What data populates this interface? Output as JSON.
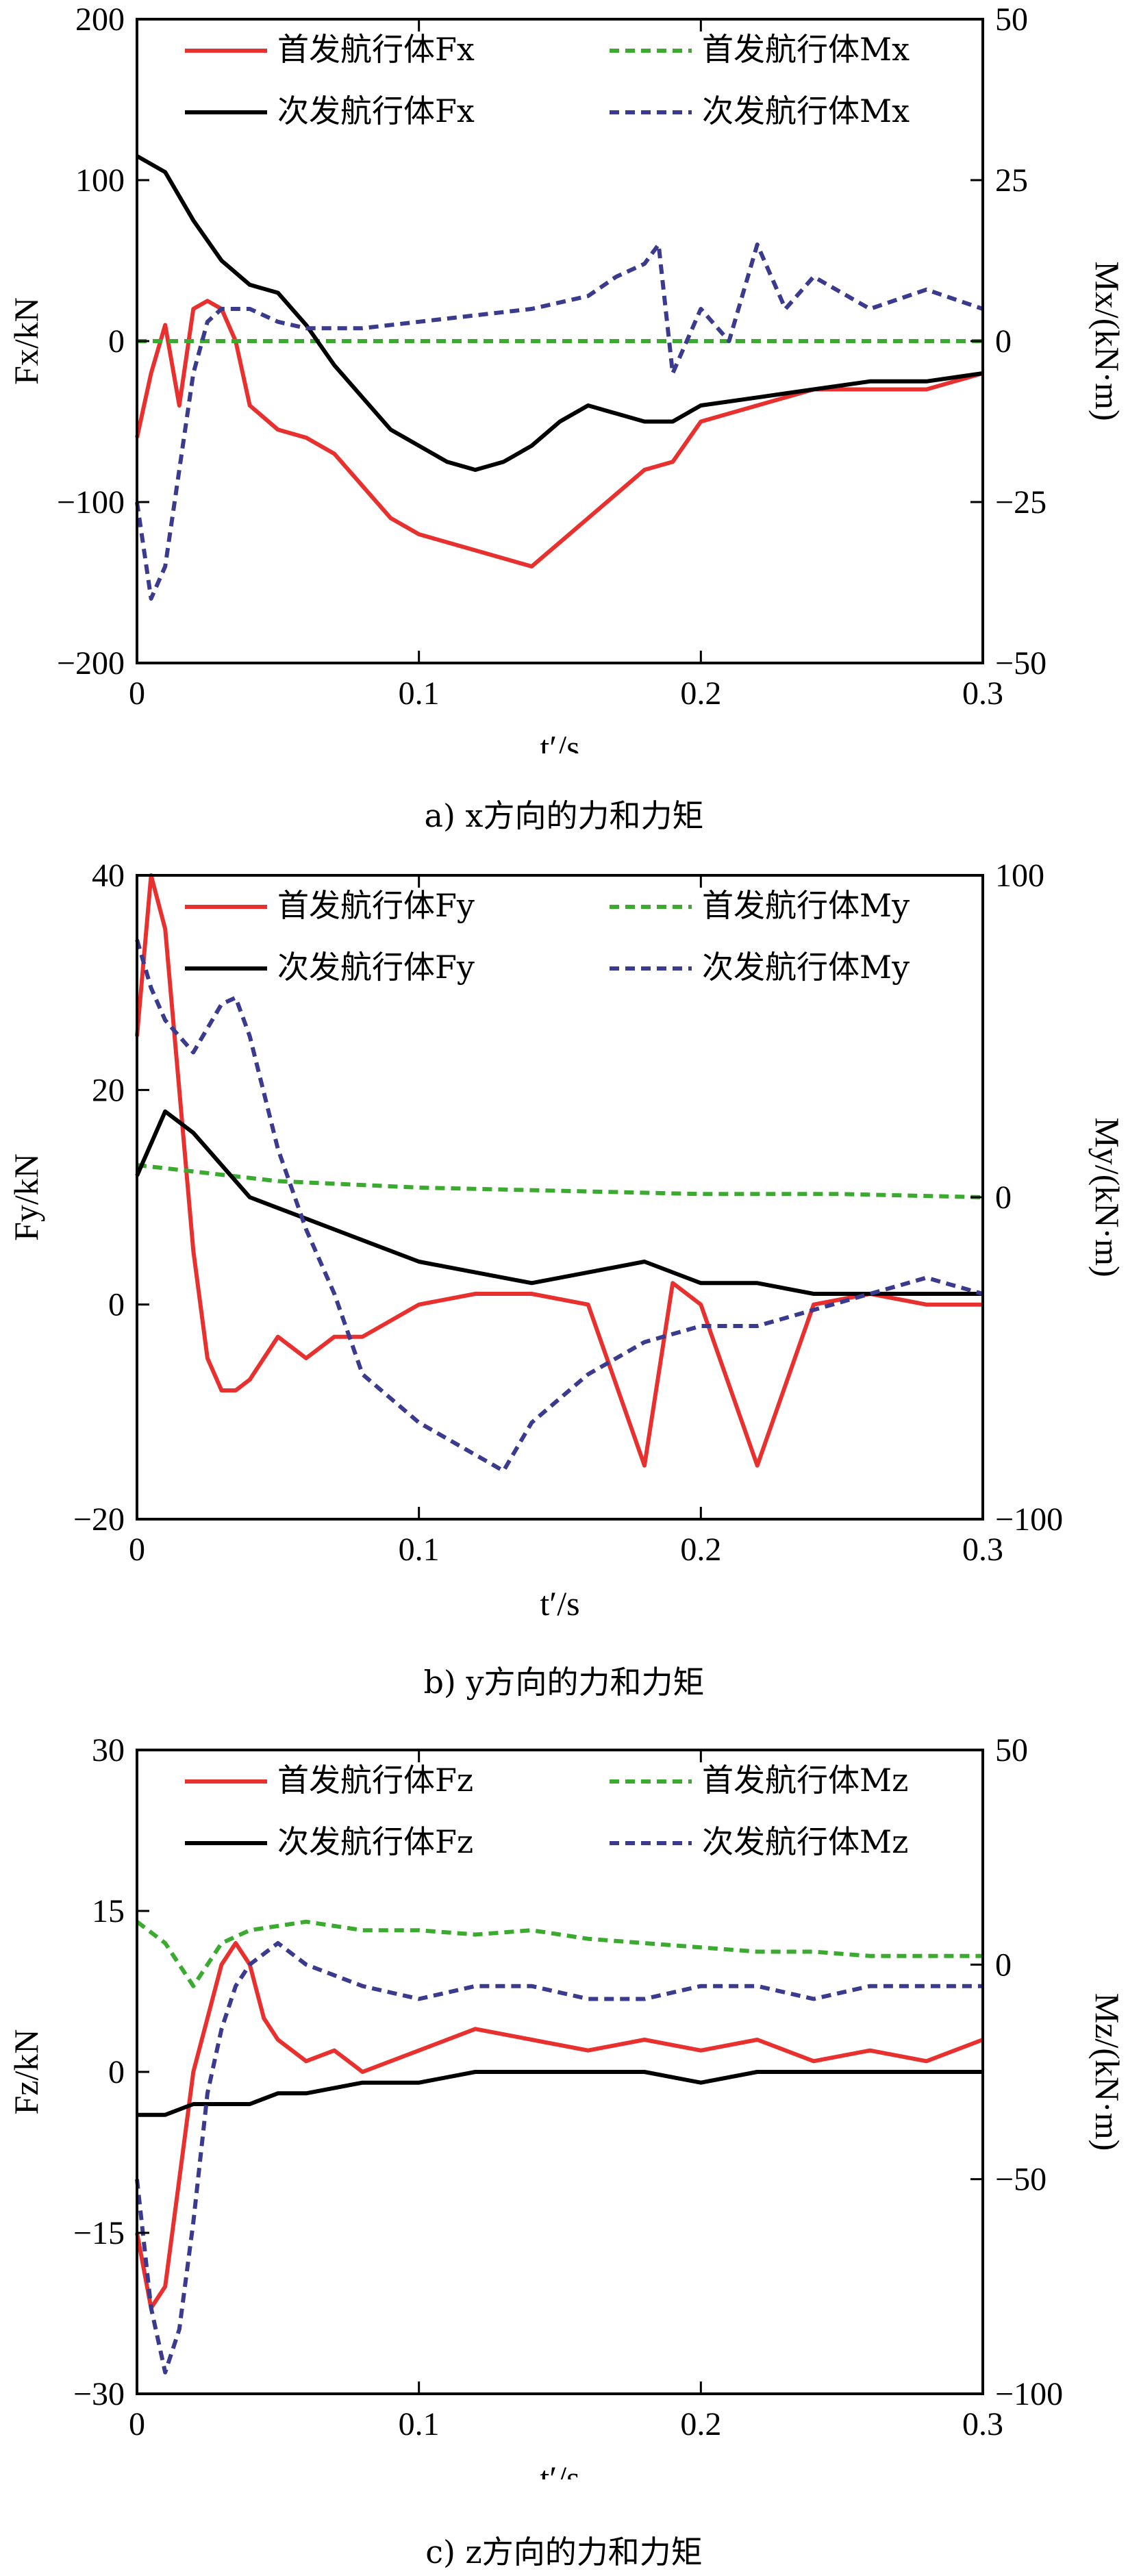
{
  "chart_data": [
    {
      "type": "line",
      "caption": "a) x方向的力和力矩",
      "xlabel": "t′/s",
      "ylabel": "Fx/kN",
      "y2label": "Mx/(kN·m)",
      "xlim": [
        0,
        0.3
      ],
      "ylim": [
        -200,
        200
      ],
      "y2lim": [
        -50,
        50
      ],
      "xticks": [
        "0",
        "0.1",
        "0.2",
        "0.3"
      ],
      "yticks": [
        "-200",
        "-100",
        "0",
        "100",
        "200"
      ],
      "y2ticks": [
        "-50",
        "-25",
        "0",
        "25",
        "50"
      ],
      "legend": [
        "首发航行体Fx",
        "首发航行体Mx",
        "次发航行体Fx",
        "次发航行体Mx"
      ],
      "series": [
        {
          "name": "首发航行体Fx",
          "axis": "left",
          "color": "#e8312f",
          "dash": "solid",
          "x": [
            0,
            0.005,
            0.01,
            0.015,
            0.02,
            0.025,
            0.03,
            0.035,
            0.04,
            0.05,
            0.06,
            0.07,
            0.08,
            0.09,
            0.1,
            0.11,
            0.12,
            0.13,
            0.14,
            0.15,
            0.16,
            0.17,
            0.18,
            0.19,
            0.2,
            0.22,
            0.24,
            0.26,
            0.28,
            0.3
          ],
          "y": [
            -60,
            -20,
            10,
            -40,
            20,
            25,
            20,
            0,
            -40,
            -55,
            -60,
            -70,
            -90,
            -110,
            -120,
            -125,
            -130,
            -135,
            -140,
            -125,
            -110,
            -95,
            -80,
            -75,
            -50,
            -40,
            -30,
            -30,
            -30,
            -20
          ]
        },
        {
          "name": "首发航行体Mx",
          "axis": "right",
          "color": "#3aab2e",
          "dash": "dash",
          "x": [
            0,
            0.05,
            0.1,
            0.15,
            0.2,
            0.25,
            0.3
          ],
          "y": [
            0,
            0,
            0,
            0,
            0,
            0,
            0
          ]
        },
        {
          "name": "次发航行体Fx",
          "axis": "left",
          "color": "#000000",
          "dash": "solid",
          "x": [
            0,
            0.01,
            0.02,
            0.03,
            0.04,
            0.05,
            0.06,
            0.07,
            0.08,
            0.09,
            0.1,
            0.11,
            0.12,
            0.13,
            0.14,
            0.15,
            0.16,
            0.17,
            0.18,
            0.19,
            0.2,
            0.22,
            0.24,
            0.26,
            0.28,
            0.3
          ],
          "y": [
            115,
            105,
            75,
            50,
            35,
            30,
            10,
            -15,
            -35,
            -55,
            -65,
            -75,
            -80,
            -75,
            -65,
            -50,
            -40,
            -45,
            -50,
            -50,
            -40,
            -35,
            -30,
            -25,
            -25,
            -20
          ]
        },
        {
          "name": "次发航行体Mx",
          "axis": "right",
          "color": "#3a3a8f",
          "dash": "dash",
          "x": [
            0,
            0.005,
            0.01,
            0.015,
            0.02,
            0.025,
            0.03,
            0.04,
            0.05,
            0.06,
            0.08,
            0.1,
            0.12,
            0.14,
            0.16,
            0.17,
            0.18,
            0.185,
            0.19,
            0.2,
            0.21,
            0.22,
            0.23,
            0.24,
            0.26,
            0.28,
            0.3
          ],
          "y": [
            -25,
            -40,
            -35,
            -20,
            -5,
            3,
            5,
            5,
            3,
            2,
            2,
            3,
            4,
            5,
            7,
            10,
            12,
            15,
            -5,
            5,
            0,
            15,
            5,
            10,
            5,
            8,
            5
          ]
        }
      ]
    },
    {
      "type": "line",
      "caption": "b) y方向的力和力矩",
      "xlabel": "t′/s",
      "ylabel": "Fy/kN",
      "y2label": "My/(kN·m)",
      "xlim": [
        0,
        0.3
      ],
      "ylim": [
        -20,
        40
      ],
      "y2lim": [
        -100,
        100
      ],
      "xticks": [
        "0",
        "0.1",
        "0.2",
        "0.3"
      ],
      "yticks": [
        "-20",
        "0",
        "20",
        "40"
      ],
      "y2ticks": [
        "-100",
        "0",
        "100"
      ],
      "legend": [
        "首发航行体Fy",
        "首发航行体My",
        "次发航行体Fy",
        "次发航行体My"
      ],
      "series": [
        {
          "name": "首发航行体Fy",
          "axis": "left",
          "color": "#e8312f",
          "dash": "solid",
          "x": [
            0,
            0.005,
            0.01,
            0.015,
            0.02,
            0.025,
            0.03,
            0.035,
            0.04,
            0.05,
            0.06,
            0.07,
            0.08,
            0.1,
            0.12,
            0.14,
            0.16,
            0.18,
            0.19,
            0.2,
            0.22,
            0.24,
            0.26,
            0.28,
            0.3
          ],
          "y": [
            25,
            40,
            35,
            20,
            5,
            -5,
            -8,
            -8,
            -7,
            -3,
            -5,
            -3,
            -3,
            0,
            1,
            1,
            0,
            -15,
            2,
            0,
            -15,
            0,
            1,
            0,
            0
          ]
        },
        {
          "name": "首发航行体My",
          "axis": "right",
          "color": "#3aab2e",
          "dash": "dash",
          "x": [
            0,
            0.02,
            0.05,
            0.1,
            0.15,
            0.2,
            0.25,
            0.3
          ],
          "y": [
            10,
            8,
            5,
            3,
            2,
            1,
            1,
            0
          ]
        },
        {
          "name": "次发航行体Fy",
          "axis": "left",
          "color": "#000000",
          "dash": "solid",
          "x": [
            0,
            0.01,
            0.02,
            0.03,
            0.04,
            0.05,
            0.06,
            0.08,
            0.1,
            0.12,
            0.14,
            0.16,
            0.18,
            0.2,
            0.22,
            0.24,
            0.26,
            0.28,
            0.3
          ],
          "y": [
            12,
            18,
            16,
            13,
            10,
            9,
            8,
            6,
            4,
            3,
            2,
            3,
            4,
            2,
            2,
            1,
            1,
            1,
            1
          ]
        },
        {
          "name": "次发航行体My",
          "axis": "right",
          "color": "#3a3a8f",
          "dash": "dash",
          "x": [
            0,
            0.005,
            0.01,
            0.02,
            0.03,
            0.035,
            0.04,
            0.05,
            0.06,
            0.07,
            0.08,
            0.1,
            0.12,
            0.13,
            0.14,
            0.16,
            0.18,
            0.2,
            0.22,
            0.24,
            0.26,
            0.28,
            0.3
          ],
          "y": [
            80,
            65,
            55,
            45,
            60,
            62,
            50,
            15,
            -10,
            -30,
            -55,
            -70,
            -80,
            -85,
            -70,
            -55,
            -45,
            -40,
            -40,
            -35,
            -30,
            -25,
            -30
          ]
        }
      ]
    },
    {
      "type": "line",
      "caption": "c) z方向的力和力矩",
      "xlabel": "t′/s",
      "ylabel": "Fz/kN",
      "y2label": "Mz/(kN·m)",
      "xlim": [
        0,
        0.3
      ],
      "ylim": [
        -30,
        30
      ],
      "y2lim": [
        -100,
        50
      ],
      "xticks": [
        "0",
        "0.1",
        "0.2",
        "0.3"
      ],
      "yticks": [
        "-30",
        "-15",
        "0",
        "15",
        "30"
      ],
      "y2ticks": [
        "-100",
        "-50",
        "0",
        "50"
      ],
      "legend": [
        "首发航行体Fz",
        "首发航行体Mz",
        "次发航行体Fz",
        "次发航行体Mz"
      ],
      "series": [
        {
          "name": "首发航行体Fz",
          "axis": "left",
          "color": "#e8312f",
          "dash": "solid",
          "x": [
            0,
            0.005,
            0.01,
            0.015,
            0.02,
            0.025,
            0.03,
            0.035,
            0.04,
            0.045,
            0.05,
            0.06,
            0.07,
            0.08,
            0.1,
            0.12,
            0.14,
            0.16,
            0.18,
            0.2,
            0.22,
            0.24,
            0.26,
            0.28,
            0.3
          ],
          "y": [
            -15,
            -22,
            -20,
            -10,
            0,
            5,
            10,
            12,
            10,
            5,
            3,
            1,
            2,
            0,
            2,
            4,
            3,
            2,
            3,
            2,
            3,
            1,
            2,
            1,
            3
          ]
        },
        {
          "name": "首发航行体Mz",
          "axis": "right",
          "color": "#3aab2e",
          "dash": "dash",
          "x": [
            0,
            0.01,
            0.02,
            0.03,
            0.04,
            0.06,
            0.08,
            0.1,
            0.12,
            0.14,
            0.16,
            0.18,
            0.2,
            0.22,
            0.24,
            0.26,
            0.28,
            0.3
          ],
          "y": [
            10,
            5,
            -5,
            5,
            8,
            10,
            8,
            8,
            7,
            8,
            6,
            5,
            4,
            3,
            3,
            2,
            2,
            2
          ]
        },
        {
          "name": "次发航行体Fz",
          "axis": "left",
          "color": "#000000",
          "dash": "solid",
          "x": [
            0,
            0.01,
            0.02,
            0.03,
            0.04,
            0.05,
            0.06,
            0.08,
            0.1,
            0.12,
            0.14,
            0.16,
            0.18,
            0.2,
            0.22,
            0.24,
            0.26,
            0.28,
            0.3
          ],
          "y": [
            -4,
            -4,
            -3,
            -3,
            -3,
            -2,
            -2,
            -1,
            -1,
            0,
            0,
            0,
            0,
            -1,
            0,
            0,
            0,
            0,
            0
          ]
        },
        {
          "name": "次发航行体Mz",
          "axis": "right",
          "color": "#3a3a8f",
          "dash": "dash",
          "x": [
            0,
            0.005,
            0.01,
            0.015,
            0.02,
            0.025,
            0.03,
            0.035,
            0.04,
            0.05,
            0.06,
            0.08,
            0.1,
            0.12,
            0.14,
            0.16,
            0.18,
            0.2,
            0.22,
            0.24,
            0.26,
            0.28,
            0.3
          ],
          "y": [
            -50,
            -80,
            -95,
            -85,
            -60,
            -30,
            -15,
            -5,
            0,
            5,
            0,
            -5,
            -8,
            -5,
            -5,
            -8,
            -8,
            -5,
            -5,
            -8,
            -5,
            -5,
            -5
          ]
        }
      ]
    }
  ]
}
